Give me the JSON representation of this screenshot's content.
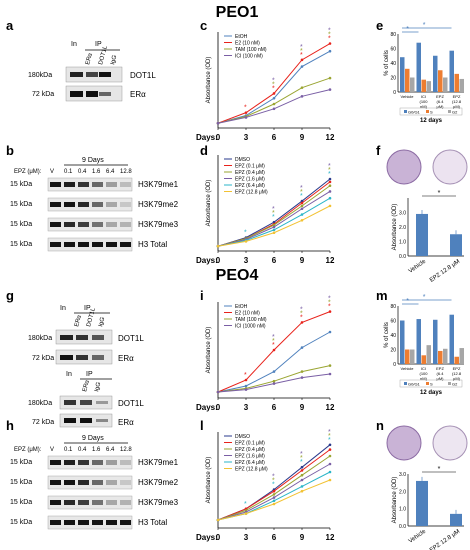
{
  "titles": {
    "top": "PEO1",
    "bottom": "PEO4"
  },
  "panel_letters": {
    "a": "a",
    "b": "b",
    "c": "c",
    "d": "d",
    "e": "e",
    "f": "f",
    "g": "g",
    "h": "h",
    "i": "i",
    "l": "l",
    "m": "m",
    "n": "n"
  },
  "blot_labels": {
    "in": "In",
    "ip": "IP",
    "era_lane": "ERα",
    "dot1l_lane": "DOT1L",
    "igg_lane": "IgG",
    "kda180": "180kDa",
    "kda72": "72 kDa",
    "kda15": "15 kDa",
    "dot1l": "DOT1L",
    "era": "ERα",
    "h3k79me1": "H3K79me1",
    "h3k79me2": "H3K79me2",
    "h3k79me3": "H3K79me3",
    "h3total": "H3 Total",
    "days9": "9 Days",
    "epz": "EPZ (μM):",
    "doses": [
      "V",
      "0.1",
      "0.4",
      "1.6",
      "6.4",
      "12.8"
    ]
  },
  "axes": {
    "absorbance": "Absorbance (OD)",
    "days": "Days:",
    "day_ticks": [
      "0",
      "3",
      "6",
      "9",
      "12"
    ],
    "pct_cells": "% of cells",
    "days12": "12 days"
  },
  "legends": {
    "treat": [
      "EtOH",
      "E2 (10 nM)",
      "TAM (100 nM)",
      "ICI (100 nM)"
    ],
    "treat_peo4": [
      "EtOH",
      "E2 (10 nM)",
      "TAM (100 nM)",
      "ICI (1000 nM)"
    ],
    "epz_peo1": [
      "DMSO",
      "EPZ (0.1 μM)",
      "EPZ (0.4 μM)",
      "EPZ (1.6 μM)",
      "EPZ (6.4 μM)",
      "EPZ (12.8 μM)"
    ],
    "epz_peo4": [
      "DMSO",
      "EPZ (0.1 μM)",
      "EPZ (0.4 μM)",
      "EPZ (1.6 μM)",
      "EPZ (6.4 μM)",
      "EPZ (12.8 μM)"
    ],
    "phase": [
      "G0/G1",
      "S",
      "G2"
    ]
  },
  "colors": {
    "blue": "#4f81bd",
    "red": "#e8221b",
    "orange": "#ed7d31",
    "gray": "#a6a6a6",
    "olive": "#9aa532",
    "purple": "#7a5fa5",
    "navy": "#2a3a8c",
    "cyan": "#2bb5c8",
    "yellow": "#f2c233"
  },
  "chart_data": [
    {
      "panel": "c",
      "type": "line",
      "x": [
        0,
        3,
        6,
        9,
        12
      ],
      "series": [
        {
          "name": "EtOH",
          "values": [
            0.05,
            0.13,
            0.31,
            0.64,
            0.8
          ]
        },
        {
          "name": "E2 (10 nM)",
          "values": [
            0.05,
            0.16,
            0.36,
            0.71,
            0.88
          ]
        },
        {
          "name": "TAM (100 nM)",
          "values": [
            0.05,
            0.12,
            0.25,
            0.42,
            0.52
          ]
        },
        {
          "name": "ICI (100 nM)",
          "values": [
            0.05,
            0.11,
            0.2,
            0.33,
            0.4
          ]
        }
      ],
      "ylim": [
        0,
        1.0
      ],
      "ylabel": "Absorbance (OD)",
      "xlabel": "Days:"
    },
    {
      "panel": "d",
      "type": "line",
      "x": [
        0,
        3,
        6,
        9,
        12
      ],
      "series": [
        {
          "name": "DMSO",
          "values": [
            0.05,
            0.14,
            0.3,
            0.52,
            0.75
          ]
        },
        {
          "name": "EPZ (0.1 μM)",
          "values": [
            0.05,
            0.13,
            0.28,
            0.5,
            0.72
          ]
        },
        {
          "name": "EPZ (0.4 μM)",
          "values": [
            0.05,
            0.13,
            0.27,
            0.47,
            0.68
          ]
        },
        {
          "name": "EPZ (1.6 μM)",
          "values": [
            0.05,
            0.12,
            0.25,
            0.44,
            0.62
          ]
        },
        {
          "name": "EPZ (6.4 μM)",
          "values": [
            0.05,
            0.11,
            0.22,
            0.38,
            0.55
          ]
        },
        {
          "name": "EPZ (12.8 μM)",
          "values": [
            0.05,
            0.1,
            0.19,
            0.32,
            0.47
          ]
        }
      ],
      "ylim": [
        0,
        1.0
      ],
      "ylabel": "Absorbance (OD)",
      "xlabel": "Days:"
    },
    {
      "panel": "e",
      "type": "bar",
      "categories": [
        "Vehicle",
        "ICI (100 nM)",
        "EPZ (6.4 μM)",
        "EPZ (12.8 μM)"
      ],
      "series": [
        {
          "name": "G0/G1",
          "values": [
            48,
            68,
            50,
            57
          ]
        },
        {
          "name": "S",
          "values": [
            32,
            17,
            30,
            25
          ]
        },
        {
          "name": "G2",
          "values": [
            20,
            15,
            20,
            18
          ]
        }
      ],
      "ylim": [
        0,
        80
      ],
      "ylabel": "% of cells",
      "xlabel": "12 days"
    },
    {
      "panel": "f",
      "type": "bar",
      "categories": [
        "Vehicle",
        "EPZ 12.8 μM"
      ],
      "values": [
        2.9,
        1.5
      ],
      "ylim": [
        0,
        4
      ],
      "ylabel": "Absorbance (OD)"
    },
    {
      "panel": "i",
      "type": "line",
      "x": [
        0,
        3,
        6,
        9,
        12
      ],
      "series": [
        {
          "name": "EtOH",
          "values": [
            0.05,
            0.1,
            0.22,
            0.42,
            0.55
          ]
        },
        {
          "name": "E2 (10 nM)",
          "values": [
            0.05,
            0.15,
            0.4,
            0.63,
            0.72
          ]
        },
        {
          "name": "TAM (100 nM)",
          "values": [
            0.05,
            0.08,
            0.14,
            0.22,
            0.27
          ]
        },
        {
          "name": "ICI (1000 nM)",
          "values": [
            0.05,
            0.07,
            0.12,
            0.17,
            0.2
          ]
        }
      ],
      "ylim": [
        0,
        0.8
      ],
      "ylabel": "Absorbance (OD)",
      "xlabel": "Days:"
    },
    {
      "panel": "l",
      "type": "line",
      "x": [
        0,
        3,
        6,
        9,
        12
      ],
      "series": [
        {
          "name": "DMSO",
          "values": [
            0.05,
            0.12,
            0.24,
            0.38,
            0.52
          ]
        },
        {
          "name": "EPZ (0.1 μM)",
          "values": [
            0.05,
            0.12,
            0.23,
            0.36,
            0.49
          ]
        },
        {
          "name": "EPZ (0.4 μM)",
          "values": [
            0.05,
            0.11,
            0.21,
            0.33,
            0.45
          ]
        },
        {
          "name": "EPZ (1.6 μM)",
          "values": [
            0.05,
            0.1,
            0.19,
            0.3,
            0.4
          ]
        },
        {
          "name": "EPZ (6.4 μM)",
          "values": [
            0.05,
            0.09,
            0.17,
            0.26,
            0.35
          ]
        },
        {
          "name": "EPZ (12.8 μM)",
          "values": [
            0.05,
            0.09,
            0.15,
            0.23,
            0.3
          ]
        }
      ],
      "ylim": [
        0,
        0.6
      ],
      "ylabel": "Absorbance (OD)",
      "xlabel": "Days:"
    },
    {
      "panel": "m",
      "type": "bar",
      "categories": [
        "Vehicle",
        "ICI (100 nM)",
        "EPZ (6.4 μM)",
        "EPZ (12.8 μM)"
      ],
      "series": [
        {
          "name": "G0/G1",
          "values": [
            60,
            62,
            61,
            68
          ]
        },
        {
          "name": "S",
          "values": [
            20,
            12,
            18,
            10
          ]
        },
        {
          "name": "G2",
          "values": [
            20,
            26,
            21,
            22
          ]
        }
      ],
      "ylim": [
        0,
        80
      ],
      "ylabel": "% of cells",
      "xlabel": "12 days"
    },
    {
      "panel": "n",
      "type": "bar",
      "categories": [
        "Vehicle",
        "EPZ 12.8 μM"
      ],
      "values": [
        2.6,
        0.7
      ],
      "ylim": [
        0,
        3
      ],
      "ylabel": "Absorbance (OD)"
    }
  ]
}
